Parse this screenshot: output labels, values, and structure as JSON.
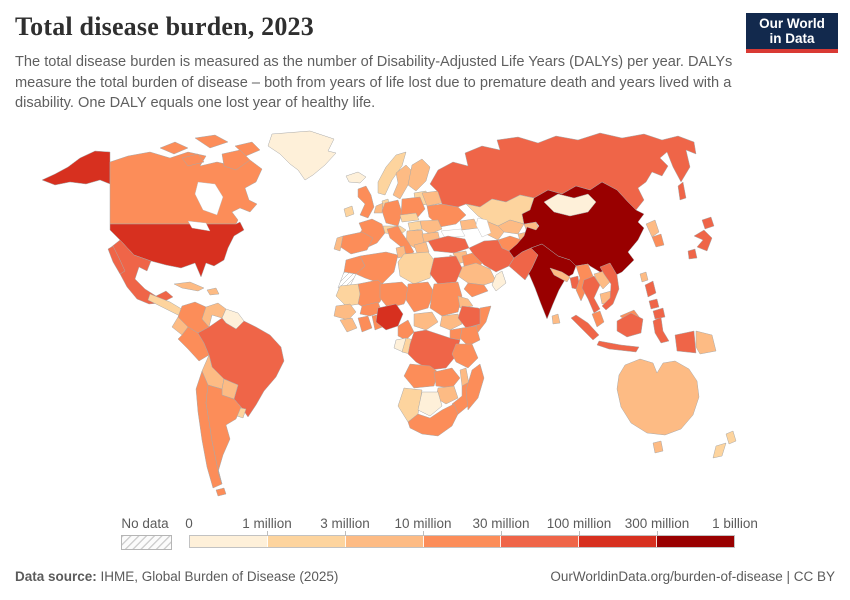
{
  "header": {
    "title": "Total disease burden, 2023",
    "subtitle": "The total disease burden is measured as the number of Disability-Adjusted Life Years (DALYs) per year. DALYs measure the total burden of disease – both from years of life lost due to premature death and years lived with a disability. One DALY equals one lost year of healthy life.",
    "logo": {
      "line1": "Our World",
      "line2": "in Data",
      "bg_color": "#12294d",
      "accent_color": "#d93a34"
    }
  },
  "chart_data": {
    "type": "choropleth",
    "title": "Total disease burden, 2023",
    "metric": "Disability-Adjusted Life Years (DALYs) per year",
    "year": "2023",
    "legend_tick_labels": [
      "0",
      "1 million",
      "3 million",
      "10 million",
      "30 million",
      "100 million",
      "300 million",
      "1 billion"
    ],
    "bin_colors": [
      "#fef0d9",
      "#fdd49e",
      "#fdbb84",
      "#fc8d59",
      "#ef6548",
      "#d7301f",
      "#990000"
    ],
    "bin_ranges": [
      "0-1 million",
      "1-3 million",
      "3-10 million",
      "10-30 million",
      "30-100 million",
      "100-300 million",
      "300 million-1 billion"
    ],
    "no_data_label": "No data",
    "countries": [
      {
        "id": "greenland",
        "bin": 0
      },
      {
        "id": "canada",
        "bin": 3
      },
      {
        "id": "usa",
        "bin": 5
      },
      {
        "id": "mexico",
        "bin": 4
      },
      {
        "id": "cuba",
        "bin": 2
      },
      {
        "id": "hispaniola",
        "bin": 2
      },
      {
        "id": "central-america",
        "bin": 1
      },
      {
        "id": "colombia",
        "bin": 3
      },
      {
        "id": "venezuela",
        "bin": 2
      },
      {
        "id": "guyanas",
        "bin": 0
      },
      {
        "id": "ecuador",
        "bin": 2
      },
      {
        "id": "peru",
        "bin": 3
      },
      {
        "id": "brazil",
        "bin": 4
      },
      {
        "id": "bolivia",
        "bin": 2
      },
      {
        "id": "paraguay",
        "bin": 2
      },
      {
        "id": "chile",
        "bin": 3
      },
      {
        "id": "argentina",
        "bin": 3
      },
      {
        "id": "uruguay",
        "bin": 1
      },
      {
        "id": "iceland",
        "bin": 0
      },
      {
        "id": "ireland",
        "bin": 1
      },
      {
        "id": "united-kingdom",
        "bin": 3
      },
      {
        "id": "norway",
        "bin": 1
      },
      {
        "id": "sweden",
        "bin": 2
      },
      {
        "id": "finland",
        "bin": 2
      },
      {
        "id": "denmark",
        "bin": 1
      },
      {
        "id": "baltics",
        "bin": 1
      },
      {
        "id": "belarus",
        "bin": 2
      },
      {
        "id": "poland",
        "bin": 3
      },
      {
        "id": "germany",
        "bin": 3
      },
      {
        "id": "benelux",
        "bin": 2
      },
      {
        "id": "france",
        "bin": 3
      },
      {
        "id": "spain",
        "bin": 3
      },
      {
        "id": "portugal",
        "bin": 2
      },
      {
        "id": "switzerland-austria",
        "bin": 1
      },
      {
        "id": "czechia-slovakia",
        "bin": 1
      },
      {
        "id": "italy",
        "bin": 3
      },
      {
        "id": "hungary",
        "bin": 1
      },
      {
        "id": "balkans",
        "bin": 2
      },
      {
        "id": "romania",
        "bin": 2
      },
      {
        "id": "bulgaria",
        "bin": 2
      },
      {
        "id": "greece",
        "bin": 2
      },
      {
        "id": "ukraine",
        "bin": 3
      },
      {
        "id": "russia",
        "bin": 4
      },
      {
        "id": "kazakhstan",
        "bin": 1
      },
      {
        "id": "uzbekistan",
        "bin": 2
      },
      {
        "id": "turkmenistan",
        "bin": 2
      },
      {
        "id": "kyrgyzstan",
        "bin": 2
      },
      {
        "id": "tajikistan",
        "bin": 2
      },
      {
        "id": "caucasus",
        "bin": 2
      },
      {
        "id": "turkey",
        "bin": 4
      },
      {
        "id": "syria",
        "bin": 2
      },
      {
        "id": "levant",
        "bin": 2
      },
      {
        "id": "iraq",
        "bin": 3
      },
      {
        "id": "iran",
        "bin": 4
      },
      {
        "id": "afghanistan",
        "bin": 3
      },
      {
        "id": "pakistan",
        "bin": 4
      },
      {
        "id": "saudi-arabia",
        "bin": 2
      },
      {
        "id": "yemen",
        "bin": 3
      },
      {
        "id": "oman",
        "bin": 0
      },
      {
        "id": "india",
        "bin": 6
      },
      {
        "id": "nepal",
        "bin": 2
      },
      {
        "id": "bangladesh",
        "bin": 4
      },
      {
        "id": "sri-lanka",
        "bin": 2
      },
      {
        "id": "myanmar",
        "bin": 3
      },
      {
        "id": "china",
        "bin": 6
      },
      {
        "id": "mongolia",
        "bin": 0
      },
      {
        "id": "north-korea",
        "bin": 2
      },
      {
        "id": "south-korea",
        "bin": 3
      },
      {
        "id": "japan",
        "bin": 4
      },
      {
        "id": "taiwan",
        "bin": 2
      },
      {
        "id": "laos",
        "bin": 2
      },
      {
        "id": "thailand",
        "bin": 4
      },
      {
        "id": "cambodia",
        "bin": 2
      },
      {
        "id": "vietnam",
        "bin": 4
      },
      {
        "id": "malaysia",
        "bin": 3
      },
      {
        "id": "indonesia",
        "bin": 4
      },
      {
        "id": "papua-new-guinea",
        "bin": 2
      },
      {
        "id": "philippines",
        "bin": 4
      },
      {
        "id": "morocco",
        "bin": 3
      },
      {
        "id": "western-sahara",
        "bin": "no-data"
      },
      {
        "id": "algeria",
        "bin": 3
      },
      {
        "id": "tunisia",
        "bin": 2
      },
      {
        "id": "libya",
        "bin": 1
      },
      {
        "id": "egypt",
        "bin": 4
      },
      {
        "id": "mauritania",
        "bin": 1
      },
      {
        "id": "mali",
        "bin": 3
      },
      {
        "id": "niger",
        "bin": 3
      },
      {
        "id": "chad",
        "bin": 3
      },
      {
        "id": "sudan",
        "bin": 3
      },
      {
        "id": "eritrea",
        "bin": 2
      },
      {
        "id": "senegal",
        "bin": 2
      },
      {
        "id": "guinea",
        "bin": 2
      },
      {
        "id": "ivory-coast",
        "bin": 3
      },
      {
        "id": "ghana",
        "bin": 3
      },
      {
        "id": "burkina-faso",
        "bin": 3
      },
      {
        "id": "nigeria",
        "bin": 5
      },
      {
        "id": "cameroon",
        "bin": 3
      },
      {
        "id": "central-african-republic",
        "bin": 2
      },
      {
        "id": "south-sudan",
        "bin": 2
      },
      {
        "id": "ethiopia",
        "bin": 4
      },
      {
        "id": "somalia",
        "bin": 3
      },
      {
        "id": "kenya",
        "bin": 3
      },
      {
        "id": "uganda",
        "bin": 3
      },
      {
        "id": "gabon",
        "bin": 0
      },
      {
        "id": "congo",
        "bin": 1
      },
      {
        "id": "dr-congo",
        "bin": 4
      },
      {
        "id": "tanzania",
        "bin": 3
      },
      {
        "id": "angola",
        "bin": 3
      },
      {
        "id": "zambia",
        "bin": 3
      },
      {
        "id": "malawi",
        "bin": 2
      },
      {
        "id": "mozambique",
        "bin": 3
      },
      {
        "id": "zimbabwe",
        "bin": 2
      },
      {
        "id": "namibia",
        "bin": 1
      },
      {
        "id": "botswana",
        "bin": 0
      },
      {
        "id": "south-africa",
        "bin": 3
      },
      {
        "id": "madagascar",
        "bin": 3
      },
      {
        "id": "australia",
        "bin": 2
      },
      {
        "id": "new-zealand",
        "bin": 1
      }
    ]
  },
  "footer": {
    "source_label": "Data source:",
    "source_text": " IHME, Global Burden of Disease (2025)",
    "link_text": "OurWorldinData.org/burden-of-disease | CC BY"
  }
}
